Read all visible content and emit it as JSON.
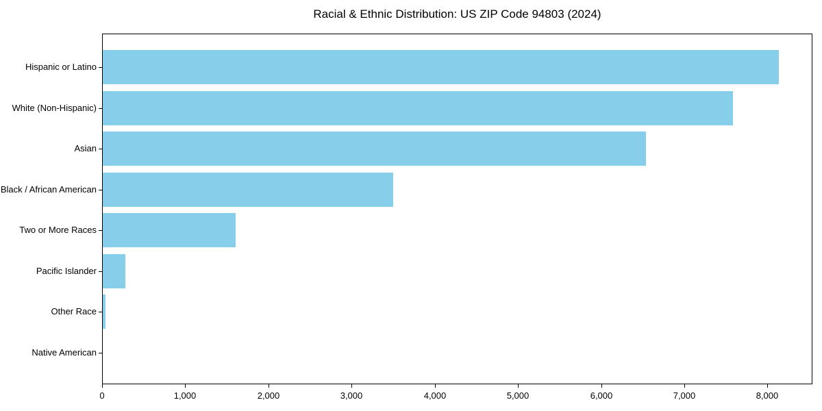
{
  "title": "Racial & Ethnic Distribution: US ZIP Code 94803 (2024)",
  "chart_data": {
    "type": "bar",
    "orientation": "horizontal",
    "title": "Racial & Ethnic Distribution: US ZIP Code 94803 (2024)",
    "categories": [
      "Hispanic or Latino",
      "White (Non-Hispanic)",
      "Asian",
      "Black / African American",
      "Two or More Races",
      "Pacific Islander",
      "Other Race",
      "Native American"
    ],
    "values": [
      8130,
      7580,
      6530,
      3490,
      1600,
      275,
      35,
      0
    ],
    "xlabel": "",
    "ylabel": "",
    "xlim": [
      0,
      8540
    ],
    "x_ticks": [
      0,
      1000,
      2000,
      3000,
      4000,
      5000,
      6000,
      7000,
      8000
    ],
    "x_tick_labels": [
      "0",
      "1,000",
      "2,000",
      "3,000",
      "4,000",
      "5,000",
      "6,000",
      "7,000",
      "8,000"
    ],
    "bar_color": "#87CEEB",
    "spine_color": "#000000",
    "text_color": "#000000",
    "background_color": "#FFFFFF",
    "grid": false,
    "legend": "none"
  }
}
